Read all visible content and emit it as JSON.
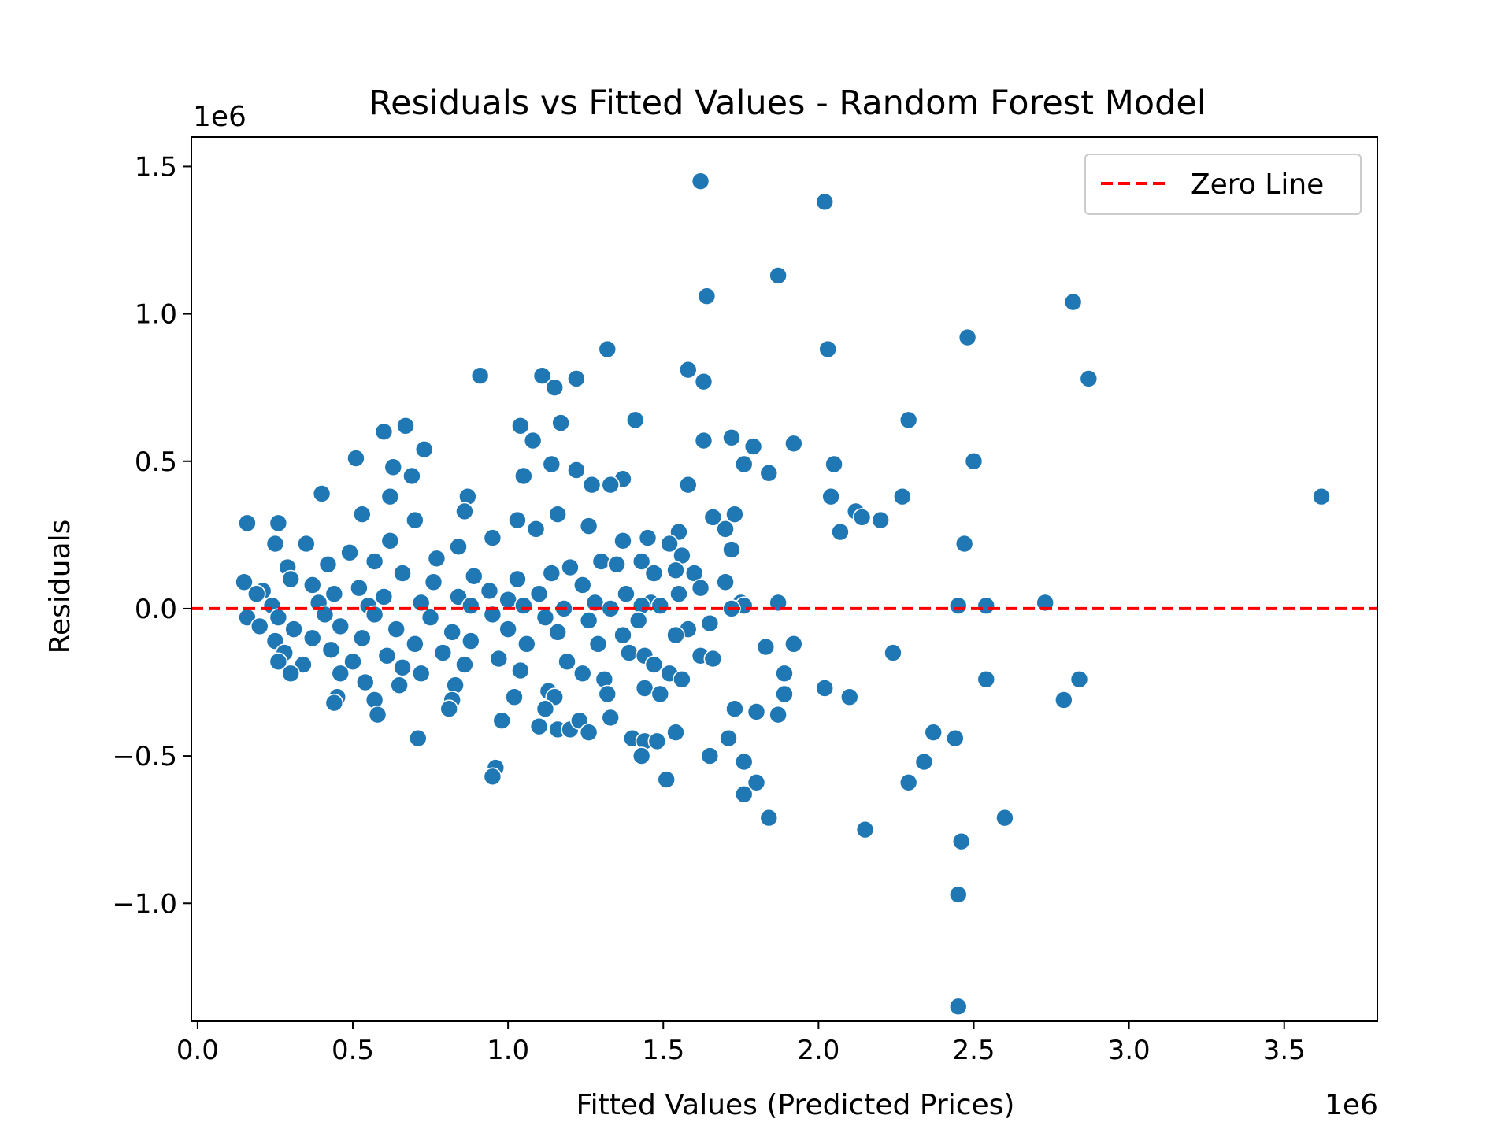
{
  "chart_data": {
    "type": "scatter",
    "title": "Residuals vs Fitted Values - Random Forest Model",
    "xlabel": "Fitted Values (Predicted Prices)",
    "ylabel": "Residuals",
    "x_offset_label": "1e6",
    "y_offset_label": "1e6",
    "xlim": [
      -0.02,
      3.8
    ],
    "ylim": [
      -1.4,
      1.6
    ],
    "x_ticks": [
      0.0,
      0.5,
      1.0,
      1.5,
      2.0,
      2.5,
      3.0,
      3.5
    ],
    "x_tick_labels": [
      "0.0",
      "0.5",
      "1.0",
      "1.5",
      "2.0",
      "2.5",
      "3.0",
      "3.5"
    ],
    "y_ticks": [
      1.5,
      1.0,
      0.5,
      0.0,
      -0.5,
      -1.0
    ],
    "y_tick_labels": [
      "1.5",
      "1.0",
      "0.5",
      "0.0",
      "−0.5",
      "−1.0"
    ],
    "grid": false,
    "legend": {
      "position": "top-right",
      "entries": [
        {
          "label": "Zero Line",
          "style": "dashed",
          "color": "#ff0000"
        }
      ]
    },
    "reference_line": {
      "y": 0,
      "style": "dashed",
      "color": "#ff0000",
      "label": "Zero Line"
    },
    "point_color": "#1f77b4",
    "point_edge_color": "#ffffff",
    "series": [
      {
        "points": [
          [
            1.62,
            1.45
          ],
          [
            2.02,
            1.38
          ],
          [
            1.87,
            1.13
          ],
          [
            1.64,
            1.06
          ],
          [
            2.82,
            1.04
          ],
          [
            2.48,
            0.92
          ],
          [
            1.32,
            0.88
          ],
          [
            2.03,
            0.88
          ],
          [
            1.58,
            0.81
          ],
          [
            0.91,
            0.79
          ],
          [
            1.11,
            0.79
          ],
          [
            1.22,
            0.78
          ],
          [
            2.87,
            0.78
          ],
          [
            1.63,
            0.77
          ],
          [
            1.15,
            0.75
          ],
          [
            1.41,
            0.64
          ],
          [
            2.29,
            0.64
          ],
          [
            1.17,
            0.63
          ],
          [
            0.67,
            0.62
          ],
          [
            1.04,
            0.62
          ],
          [
            0.6,
            0.6
          ],
          [
            1.08,
            0.57
          ],
          [
            1.72,
            0.58
          ],
          [
            1.92,
            0.56
          ],
          [
            1.63,
            0.57
          ],
          [
            1.79,
            0.55
          ],
          [
            0.73,
            0.54
          ],
          [
            0.51,
            0.51
          ],
          [
            2.5,
            0.5
          ],
          [
            1.76,
            0.49
          ],
          [
            2.05,
            0.49
          ],
          [
            1.14,
            0.49
          ],
          [
            1.22,
            0.47
          ],
          [
            0.63,
            0.48
          ],
          [
            1.84,
            0.46
          ],
          [
            0.69,
            0.45
          ],
          [
            1.05,
            0.45
          ],
          [
            1.37,
            0.44
          ],
          [
            1.33,
            0.42
          ],
          [
            1.58,
            0.42
          ],
          [
            1.27,
            0.42
          ],
          [
            0.4,
            0.39
          ],
          [
            3.62,
            0.38
          ],
          [
            2.04,
            0.38
          ],
          [
            2.27,
            0.38
          ],
          [
            0.87,
            0.38
          ],
          [
            0.62,
            0.38
          ],
          [
            2.12,
            0.33
          ],
          [
            1.66,
            0.31
          ],
          [
            1.73,
            0.32
          ],
          [
            2.14,
            0.31
          ],
          [
            2.2,
            0.3
          ],
          [
            1.16,
            0.32
          ],
          [
            0.16,
            0.29
          ],
          [
            0.26,
            0.29
          ],
          [
            0.53,
            0.32
          ],
          [
            0.7,
            0.3
          ],
          [
            0.86,
            0.33
          ],
          [
            1.26,
            0.28
          ],
          [
            1.03,
            0.3
          ],
          [
            2.07,
            0.26
          ],
          [
            1.55,
            0.26
          ],
          [
            1.7,
            0.27
          ],
          [
            1.45,
            0.24
          ],
          [
            1.37,
            0.23
          ],
          [
            2.47,
            0.22
          ],
          [
            0.62,
            0.23
          ],
          [
            0.35,
            0.22
          ],
          [
            0.25,
            0.22
          ],
          [
            1.52,
            0.22
          ],
          [
            1.72,
            0.2
          ],
          [
            1.56,
            0.18
          ],
          [
            0.84,
            0.21
          ],
          [
            1.09,
            0.27
          ],
          [
            0.95,
            0.24
          ],
          [
            0.49,
            0.19
          ],
          [
            0.77,
            0.17
          ],
          [
            1.3,
            0.16
          ],
          [
            1.43,
            0.16
          ],
          [
            1.2,
            0.14
          ],
          [
            0.29,
            0.14
          ],
          [
            0.42,
            0.15
          ],
          [
            0.57,
            0.16
          ],
          [
            1.35,
            0.15
          ],
          [
            1.54,
            0.13
          ],
          [
            1.47,
            0.12
          ],
          [
            1.6,
            0.12
          ],
          [
            0.3,
            0.1
          ],
          [
            0.66,
            0.12
          ],
          [
            0.89,
            0.11
          ],
          [
            1.03,
            0.1
          ],
          [
            1.14,
            0.12
          ],
          [
            1.7,
            0.09
          ],
          [
            1.62,
            0.07
          ],
          [
            1.24,
            0.08
          ],
          [
            0.37,
            0.08
          ],
          [
            0.52,
            0.07
          ],
          [
            0.76,
            0.09
          ],
          [
            0.94,
            0.06
          ],
          [
            0.15,
            0.09
          ],
          [
            0.21,
            0.06
          ],
          [
            1.1,
            0.05
          ],
          [
            1.38,
            0.05
          ],
          [
            1.55,
            0.05
          ],
          [
            0.19,
            0.05
          ],
          [
            0.44,
            0.05
          ],
          [
            0.6,
            0.04
          ],
          [
            0.84,
            0.04
          ],
          [
            1.0,
            0.03
          ],
          [
            1.28,
            0.02
          ],
          [
            1.46,
            0.02
          ],
          [
            1.43,
            0.01
          ],
          [
            1.75,
            0.02
          ],
          [
            1.76,
            0.01
          ],
          [
            1.87,
            0.02
          ],
          [
            2.45,
            0.01
          ],
          [
            2.54,
            0.01
          ],
          [
            2.73,
            0.02
          ],
          [
            0.24,
            0.01
          ],
          [
            0.39,
            0.02
          ],
          [
            0.55,
            0.01
          ],
          [
            0.72,
            0.02
          ],
          [
            0.88,
            0.01
          ],
          [
            1.05,
            0.01
          ],
          [
            1.18,
            0.0
          ],
          [
            1.33,
            0.0
          ],
          [
            1.49,
            0.01
          ],
          [
            1.72,
            0.0
          ],
          [
            0.16,
            -0.03
          ],
          [
            0.26,
            -0.03
          ],
          [
            0.41,
            -0.02
          ],
          [
            0.57,
            -0.02
          ],
          [
            0.75,
            -0.03
          ],
          [
            0.95,
            -0.02
          ],
          [
            1.12,
            -0.03
          ],
          [
            1.26,
            -0.04
          ],
          [
            1.42,
            -0.04
          ],
          [
            1.58,
            -0.07
          ],
          [
            1.65,
            -0.05
          ],
          [
            0.2,
            -0.06
          ],
          [
            0.31,
            -0.07
          ],
          [
            0.46,
            -0.06
          ],
          [
            0.64,
            -0.07
          ],
          [
            0.82,
            -0.08
          ],
          [
            1.0,
            -0.07
          ],
          [
            1.16,
            -0.08
          ],
          [
            1.37,
            -0.09
          ],
          [
            1.54,
            -0.09
          ],
          [
            0.25,
            -0.11
          ],
          [
            0.37,
            -0.1
          ],
          [
            0.53,
            -0.1
          ],
          [
            0.7,
            -0.12
          ],
          [
            0.88,
            -0.11
          ],
          [
            1.06,
            -0.12
          ],
          [
            1.29,
            -0.12
          ],
          [
            1.83,
            -0.13
          ],
          [
            1.92,
            -0.12
          ],
          [
            1.39,
            -0.15
          ],
          [
            1.44,
            -0.16
          ],
          [
            1.62,
            -0.16
          ],
          [
            2.24,
            -0.15
          ],
          [
            1.66,
            -0.17
          ],
          [
            0.28,
            -0.15
          ],
          [
            0.43,
            -0.14
          ],
          [
            0.61,
            -0.16
          ],
          [
            0.79,
            -0.15
          ],
          [
            0.97,
            -0.17
          ],
          [
            1.19,
            -0.18
          ],
          [
            1.47,
            -0.19
          ],
          [
            0.26,
            -0.18
          ],
          [
            0.34,
            -0.19
          ],
          [
            0.5,
            -0.18
          ],
          [
            0.66,
            -0.2
          ],
          [
            0.86,
            -0.19
          ],
          [
            1.04,
            -0.21
          ],
          [
            1.24,
            -0.22
          ],
          [
            1.89,
            -0.22
          ],
          [
            0.3,
            -0.22
          ],
          [
            0.46,
            -0.22
          ],
          [
            0.72,
            -0.22
          ],
          [
            1.52,
            -0.22
          ],
          [
            1.56,
            -0.24
          ],
          [
            2.54,
            -0.24
          ],
          [
            2.84,
            -0.24
          ],
          [
            0.54,
            -0.25
          ],
          [
            0.65,
            -0.26
          ],
          [
            0.83,
            -0.26
          ],
          [
            1.13,
            -0.28
          ],
          [
            1.31,
            -0.24
          ],
          [
            1.44,
            -0.27
          ],
          [
            1.49,
            -0.29
          ],
          [
            1.89,
            -0.29
          ],
          [
            2.02,
            -0.27
          ],
          [
            2.1,
            -0.3
          ],
          [
            0.45,
            -0.3
          ],
          [
            0.57,
            -0.31
          ],
          [
            0.82,
            -0.31
          ],
          [
            1.02,
            -0.3
          ],
          [
            1.15,
            -0.3
          ],
          [
            1.32,
            -0.29
          ],
          [
            2.79,
            -0.31
          ],
          [
            0.44,
            -0.32
          ],
          [
            0.58,
            -0.36
          ],
          [
            0.81,
            -0.34
          ],
          [
            1.12,
            -0.34
          ],
          [
            1.73,
            -0.34
          ],
          [
            1.8,
            -0.35
          ],
          [
            1.87,
            -0.36
          ],
          [
            1.33,
            -0.37
          ],
          [
            0.98,
            -0.38
          ],
          [
            1.1,
            -0.4
          ],
          [
            1.16,
            -0.41
          ],
          [
            1.2,
            -0.41
          ],
          [
            1.23,
            -0.38
          ],
          [
            1.26,
            -0.42
          ],
          [
            1.4,
            -0.44
          ],
          [
            1.44,
            -0.45
          ],
          [
            1.48,
            -0.45
          ],
          [
            1.54,
            -0.42
          ],
          [
            2.37,
            -0.42
          ],
          [
            1.71,
            -0.44
          ],
          [
            0.71,
            -0.44
          ],
          [
            2.44,
            -0.44
          ],
          [
            1.43,
            -0.5
          ],
          [
            1.65,
            -0.5
          ],
          [
            2.34,
            -0.52
          ],
          [
            0.96,
            -0.54
          ],
          [
            1.76,
            -0.52
          ],
          [
            0.95,
            -0.57
          ],
          [
            1.51,
            -0.58
          ],
          [
            2.29,
            -0.59
          ],
          [
            1.8,
            -0.59
          ],
          [
            1.76,
            -0.63
          ],
          [
            1.84,
            -0.71
          ],
          [
            2.6,
            -0.71
          ],
          [
            2.15,
            -0.75
          ],
          [
            2.46,
            -0.79
          ],
          [
            2.45,
            -0.97
          ],
          [
            2.45,
            -1.35
          ]
        ]
      }
    ]
  }
}
